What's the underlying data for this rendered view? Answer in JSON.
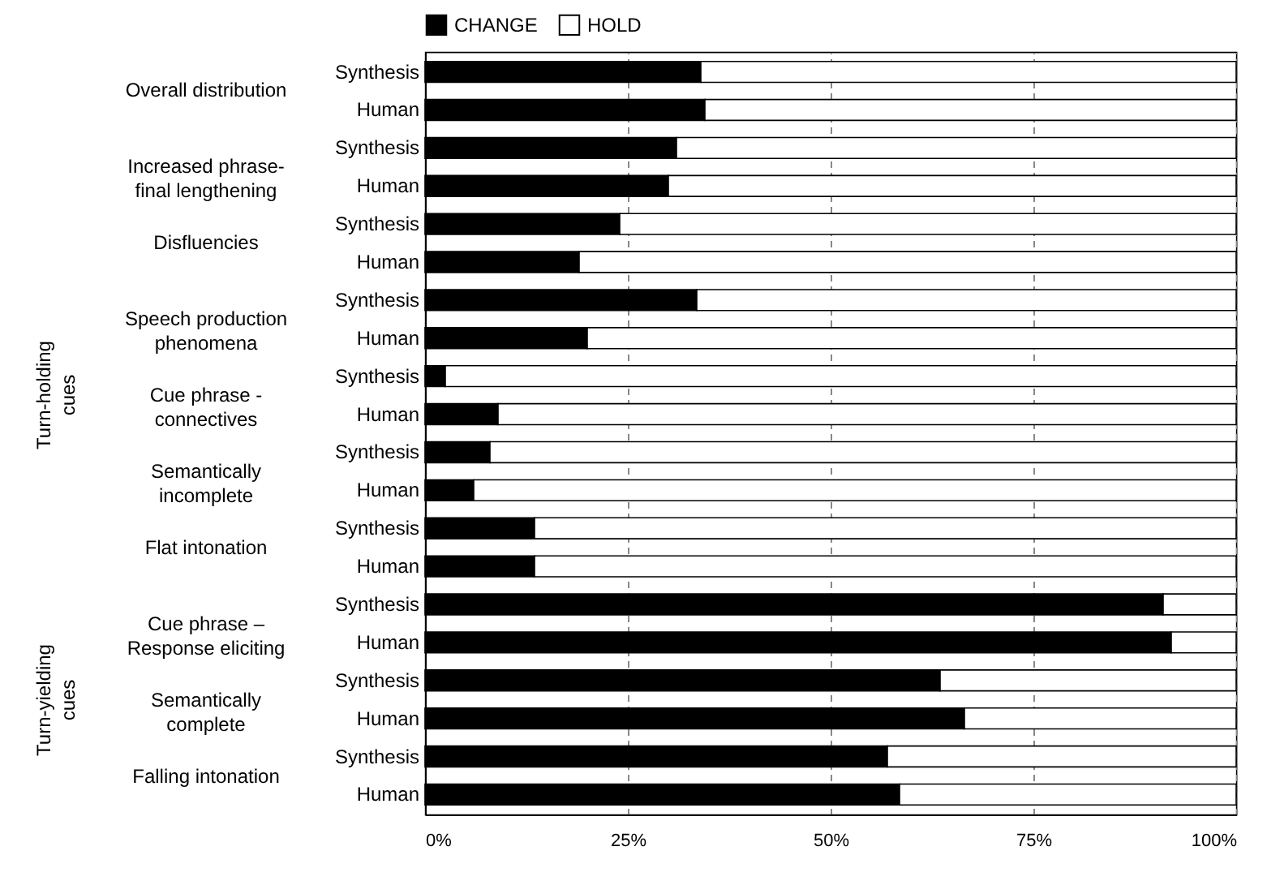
{
  "chart_data": {
    "type": "bar",
    "orientation": "horizontal",
    "stacked": true,
    "categories": [
      "Synthesis",
      "Human",
      "Synthesis",
      "Human",
      "Synthesis",
      "Human",
      "Synthesis",
      "Human",
      "Synthesis",
      "Human",
      "Synthesis",
      "Human",
      "Synthesis",
      "Human",
      "Synthesis",
      "Human",
      "Synthesis",
      "Human",
      "Synthesis",
      "Human"
    ],
    "series": [
      {
        "name": "CHANGE",
        "color": "#000000",
        "values": [
          34,
          34.5,
          31,
          30,
          24,
          19,
          33.5,
          20,
          2.5,
          9,
          8,
          6,
          13.5,
          13.5,
          91,
          92,
          63.5,
          66.5,
          57,
          58.5
        ]
      },
      {
        "name": "HOLD",
        "color": "#ffffff",
        "values": [
          66,
          65.5,
          69,
          70,
          76,
          81,
          66.5,
          80,
          97.5,
          91,
          92,
          94,
          86.5,
          86.5,
          9,
          8,
          36.5,
          33.5,
          43,
          41.5
        ]
      }
    ],
    "xlim": [
      0,
      100
    ],
    "xticks": [
      {
        "value": 0,
        "label": "0%"
      },
      {
        "value": 25,
        "label": "25%"
      },
      {
        "value": 50,
        "label": "50%"
      },
      {
        "value": 75,
        "label": "75%"
      },
      {
        "value": 100,
        "label": "100%"
      }
    ],
    "grid": "x",
    "legend": "top",
    "annotations": [
      "Overall distribution",
      "Increased phrase-final lengthening",
      "Disfluencies",
      "Speech production phenomena",
      "Cue phrase - connectives",
      "Semantically incomplete",
      "Flat intonation",
      "Cue phrase – Response eliciting",
      "Semantically complete",
      "Falling intonation",
      "Turn-holding cues",
      "Turn-yielding cues"
    ]
  }
}
